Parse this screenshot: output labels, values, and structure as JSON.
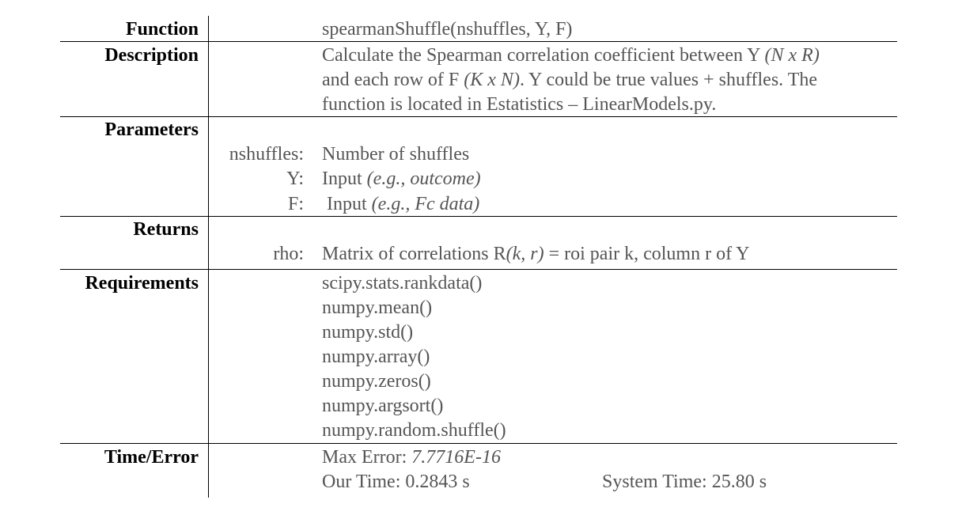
{
  "labels": {
    "function": "Function",
    "description": "Description",
    "parameters": "Parameters",
    "returns": "Returns",
    "requirements": "Requirements",
    "time_error": "Time/Error"
  },
  "function_signature": "spearmanShuffle(nshuffles, Y,  F)",
  "description": {
    "l1_a": "Calculate the Spearman correlation coefficient between Y ",
    "l1_b": "(N x R)",
    "l2_a": "and each row of F ",
    "l2_b": "(K x N)",
    "l2_c": ". Y could be true values + shuffles. The",
    "l3": "function is located in Estatistics – LinearModels.py."
  },
  "parameters": [
    {
      "name": "nshuffles:",
      "desc": "Number of shuffles",
      "note": ""
    },
    {
      "name": "Y:",
      "desc": "Input ",
      "note": "(e.g., outcome)"
    },
    {
      "name": "F:",
      "desc": " Input ",
      "note": "(e.g., Fc data)"
    }
  ],
  "returns": {
    "name": "rho:",
    "desc_a": "Matrix of correlations R",
    "desc_b": "(k, r)",
    "desc_c": " = roi pair k, column r of Y"
  },
  "requirements": [
    "scipy.stats.rankdata()",
    "numpy.mean()",
    "numpy.std()",
    "numpy.array()",
    "numpy.zeros()",
    "numpy.argsort()",
    "numpy.random.shuffle()"
  ],
  "time_error": {
    "max_error_label": "Max Error: ",
    "max_error_value": "7.7716E-16",
    "our_time": "Our Time: 0.2843 s",
    "system_time": "System Time: 25.80 s"
  }
}
